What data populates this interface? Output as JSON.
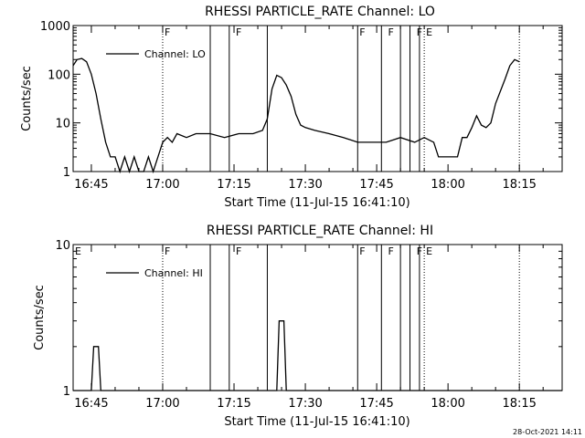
{
  "footer_date": "28-Oct-2021 14:11",
  "chart_data": [
    {
      "type": "line",
      "title": "RHESSI PARTICLE_RATE Channel: LO",
      "xlabel": "Start Time (11-Jul-15 16:41:10)",
      "ylabel": "Counts/sec",
      "yscale": "log",
      "xlim": [
        "16:41:10",
        "18:24:00"
      ],
      "ylim": [
        1,
        1000
      ],
      "xticks": [
        "16:45",
        "17:00",
        "17:15",
        "17:30",
        "17:45",
        "18:00",
        "18:15"
      ],
      "yticks": [
        "1",
        "10",
        "100",
        "1000"
      ],
      "legend": {
        "label": "Channel: LO",
        "position": "top-left"
      },
      "flag_letters": {
        "17:00": "F",
        "17:15": "F",
        "17:41": "F",
        "17:47": "F",
        "17:53": "F",
        "17:55": "E"
      },
      "solid_markers": [
        "17:10:00",
        "17:14:00",
        "17:22:00",
        "17:41:00",
        "17:46:00",
        "17:50:00",
        "17:52:00",
        "17:54:00"
      ],
      "dotted_markers": [
        "17:00:00",
        "17:55:00",
        "18:15:00"
      ],
      "series": [
        {
          "name": "Channel: LO",
          "x": [
            "16:41:10",
            "16:42:00",
            "16:43:00",
            "16:44:00",
            "16:45:00",
            "16:46:00",
            "16:47:00",
            "16:48:00",
            "16:49:00",
            "16:50:00",
            "16:51:00",
            "16:52:00",
            "16:53:00",
            "16:54:00",
            "16:55:00",
            "16:56:00",
            "16:57:00",
            "16:58:00",
            "16:59:00",
            "17:00:00",
            "17:01:00",
            "17:02:00",
            "17:03:00",
            "17:05:00",
            "17:07:00",
            "17:10:00",
            "17:13:00",
            "17:16:00",
            "17:19:00",
            "17:21:00",
            "17:22:00",
            "17:23:00",
            "17:24:00",
            "17:25:00",
            "17:26:00",
            "17:27:00",
            "17:28:00",
            "17:29:00",
            "17:30:00",
            "17:32:00",
            "17:35:00",
            "17:38:00",
            "17:41:00",
            "17:44:00",
            "17:47:00",
            "17:50:00",
            "17:53:00",
            "17:55:00",
            "17:57:00",
            "17:58:00",
            "18:00:00",
            "18:02:00",
            "18:03:00",
            "18:04:00",
            "18:05:00",
            "18:06:00",
            "18:07:00",
            "18:08:00",
            "18:09:00",
            "18:10:00",
            "18:12:00",
            "18:13:00",
            "18:14:00",
            "18:15:00"
          ],
          "values": [
            150,
            200,
            210,
            180,
            100,
            40,
            12,
            4,
            2,
            2,
            1,
            2,
            1,
            2,
            1,
            1,
            2,
            1,
            2,
            4,
            5,
            4,
            6,
            5,
            6,
            6,
            5,
            6,
            6,
            7,
            12,
            50,
            95,
            85,
            60,
            35,
            15,
            9,
            8,
            7,
            6,
            5,
            4,
            4,
            4,
            5,
            4,
            5,
            4,
            2,
            2,
            2,
            5,
            5,
            8,
            14,
            9,
            8,
            10,
            25,
            80,
            150,
            200,
            180
          ]
        }
      ]
    },
    {
      "type": "line",
      "title": "RHESSI PARTICLE_RATE Channel: HI",
      "xlabel": "Start Time (11-Jul-15 16:41:10)",
      "ylabel": "Counts/sec",
      "yscale": "log",
      "xlim": [
        "16:41:10",
        "18:24:00"
      ],
      "ylim": [
        1,
        10
      ],
      "xticks": [
        "16:45",
        "17:00",
        "17:15",
        "17:30",
        "17:45",
        "18:00",
        "18:15"
      ],
      "yticks": [
        "1",
        "10"
      ],
      "legend": {
        "label": "Channel: HI",
        "position": "top-left"
      },
      "flag_letters": {
        "16:41:10": "E",
        "17:00": "F",
        "17:15": "F",
        "17:41": "F",
        "17:47": "F",
        "17:53": "F",
        "17:55": "E"
      },
      "solid_markers": [
        "17:10:00",
        "17:14:00",
        "17:22:00",
        "17:41:00",
        "17:46:00",
        "17:50:00",
        "17:52:00",
        "17:54:00"
      ],
      "dotted_markers": [
        "17:00:00",
        "17:55:00",
        "18:15:00"
      ],
      "series": [
        {
          "name": "Channel: HI",
          "x": [
            "16:41:10",
            "16:44:00",
            "16:45:00",
            "16:45:30",
            "16:46:30",
            "16:47:00",
            "16:48:00",
            "17:23:00",
            "17:24:00",
            "17:24:30",
            "17:25:30",
            "17:26:00",
            "17:27:00",
            "18:24:00"
          ],
          "values": [
            1,
            1,
            1,
            2,
            2,
            1,
            1,
            1,
            1,
            3,
            3,
            1,
            1,
            1
          ]
        }
      ]
    }
  ]
}
